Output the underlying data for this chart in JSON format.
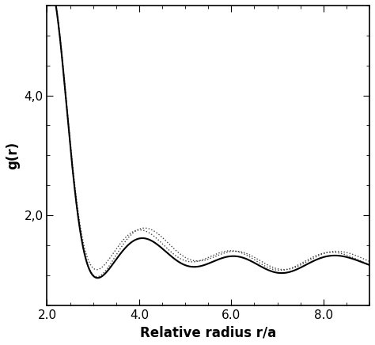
{
  "xlabel": "Relative radius r/a",
  "ylabel": "g(r)",
  "xlim": [
    2.0,
    9.0
  ],
  "ylim": [
    0.5,
    5.5
  ],
  "yticks": [
    2.0,
    4.0
  ],
  "xticks": [
    2.0,
    4.0,
    6.0,
    8.0
  ],
  "xtick_labels": [
    "2.0",
    "4.0",
    "6.0",
    "8.0"
  ],
  "ytick_labels": [
    "2,0",
    "4,0"
  ],
  "background_color": "#ffffff",
  "line_color_solid": "#000000",
  "line_color_dotted1": "#444444",
  "line_color_dotted2": "#444444"
}
